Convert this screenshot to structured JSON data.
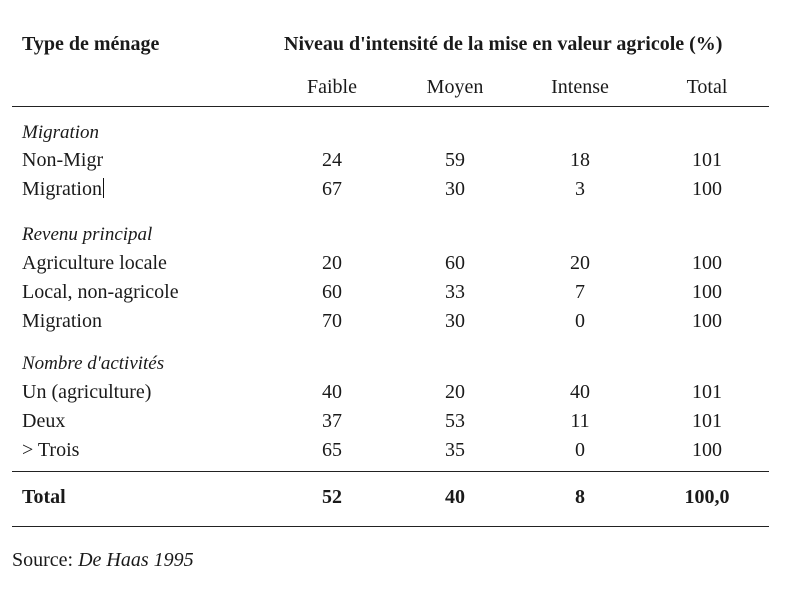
{
  "header": {
    "row_label": "Type de ménage",
    "group_label": "Niveau d'intensité de la mise en valeur agricole (%)",
    "columns": [
      "Faible",
      "Moyen",
      "Intense",
      "Total"
    ]
  },
  "sections": [
    {
      "title": "Migration",
      "rows": [
        {
          "label": "Non-Migr",
          "values": [
            "24",
            "59",
            "18",
            "101"
          ]
        },
        {
          "label": "Migration",
          "values": [
            "67",
            "30",
            "3",
            "100"
          ]
        }
      ]
    },
    {
      "title": "Revenu principal",
      "rows": [
        {
          "label": "Agriculture locale",
          "values": [
            "20",
            "60",
            "20",
            "100"
          ]
        },
        {
          "label": "Local, non-agricole",
          "values": [
            "60",
            "33",
            "7",
            "100"
          ]
        },
        {
          "label": "Migration",
          "values": [
            "70",
            "30",
            "0",
            "100"
          ]
        }
      ]
    },
    {
      "title": "Nombre d'activités",
      "rows": [
        {
          "label": "Un (agriculture)",
          "values": [
            "40",
            "20",
            "40",
            "101"
          ]
        },
        {
          "label": "Deux",
          "values": [
            "37",
            "53",
            "11",
            "101"
          ]
        },
        {
          "label": "> Trois",
          "values": [
            "65",
            "35",
            "0",
            "100"
          ]
        }
      ]
    }
  ],
  "total": {
    "label": "Total",
    "values": [
      "52",
      "40",
      "8",
      "100,0"
    ]
  },
  "source": {
    "prefix": "Source: ",
    "citation": "De Haas 1995"
  }
}
